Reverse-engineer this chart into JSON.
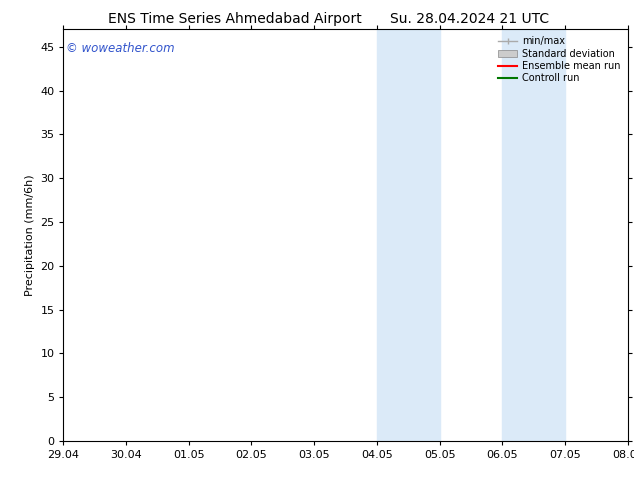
{
  "title": "ENS Time Series Ahmedabad Airport",
  "title2": "Su. 28.04.2024 21 UTC",
  "ylabel": "Precipitation (mm/6h)",
  "xlabel_ticks": [
    "29.04",
    "30.04",
    "01.05",
    "02.05",
    "03.05",
    "04.05",
    "05.05",
    "06.05",
    "07.05",
    "08.05"
  ],
  "xlim": [
    0,
    9
  ],
  "ylim": [
    0,
    47
  ],
  "yticks": [
    0,
    5,
    10,
    15,
    20,
    25,
    30,
    35,
    40,
    45
  ],
  "background_color": "#ffffff",
  "plot_bg_color": "#ffffff",
  "shade_color": "#dbeaf8",
  "shade_regions": [
    [
      5.0,
      5.5
    ],
    [
      5.5,
      6.0
    ],
    [
      7.0,
      7.5
    ],
    [
      7.5,
      8.0
    ]
  ],
  "watermark": "© woweather.com",
  "watermark_color": "#3355cc",
  "legend_items": [
    {
      "label": "min/max",
      "color": "#aaaaaa",
      "lw": 1.0
    },
    {
      "label": "Standard deviation",
      "color": "#cccccc",
      "lw": 5
    },
    {
      "label": "Ensemble mean run",
      "color": "#ff0000",
      "lw": 1.5
    },
    {
      "label": "Controll run",
      "color": "#007700",
      "lw": 1.5
    }
  ],
  "title_fontsize": 10,
  "axis_label_fontsize": 8,
  "tick_fontsize": 8,
  "watermark_fontsize": 8.5
}
